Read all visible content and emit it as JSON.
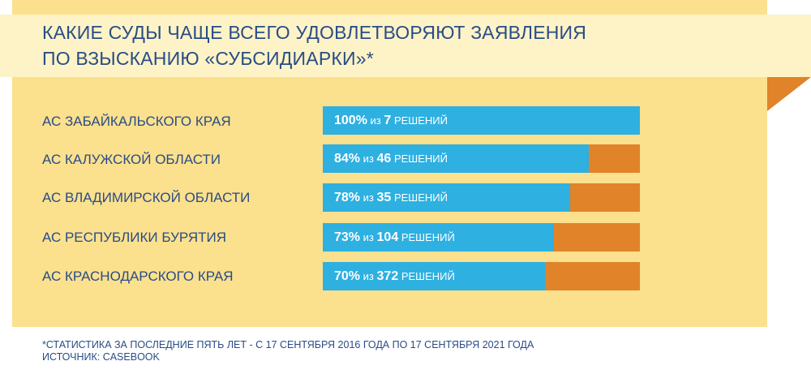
{
  "chart_data": {
    "type": "bar",
    "orientation": "horizontal",
    "title_line1": "КАКИЕ СУДЫ ЧАЩЕ ВСЕГО УДОВЛЕТВОРЯЮТ ЗАЯВЛЕНИЯ",
    "title_line2": "ПО ВЗЫСКАНИЮ «СУБСИДИАРКИ»*",
    "categories": [
      "АС ЗАБАЙКАЛЬСКОГО КРАЯ",
      "АС КАЛУЖСКОЙ ОБЛАСТИ",
      "АС ВЛАДИМИРСКОЙ ОБЛАСТИ",
      "АС РЕСПУБЛИКИ БУРЯТИЯ",
      "АС КРАСНОДАРСКОГО КРАЯ"
    ],
    "percents": [
      100,
      84,
      78,
      73,
      70
    ],
    "percent_labels": [
      "100%",
      "84%",
      "78%",
      "73%",
      "70%"
    ],
    "totals": [
      "7",
      "46",
      "35",
      "104",
      "372"
    ],
    "of_word": "из",
    "unit_word": "РЕШЕНИЙ",
    "xlim": [
      0,
      100
    ],
    "footnote_line1": "*СТАТИСТИКА ЗА ПОСЛЕДНИЕ ПЯТЬ ЛЕТ - С 17 СЕНТЯБРЯ 2016 ГОДА ПО 17 СЕНТЯБРЯ 2021 ГОДА",
    "footnote_line2": "ИСТОЧНИК: CASEBOOK",
    "colors": {
      "card": "#fbe08d",
      "band": "#fdf3c6",
      "satisfied": "#2eb0e1",
      "remainder": "#e08329",
      "text": "#2a4c86"
    }
  }
}
